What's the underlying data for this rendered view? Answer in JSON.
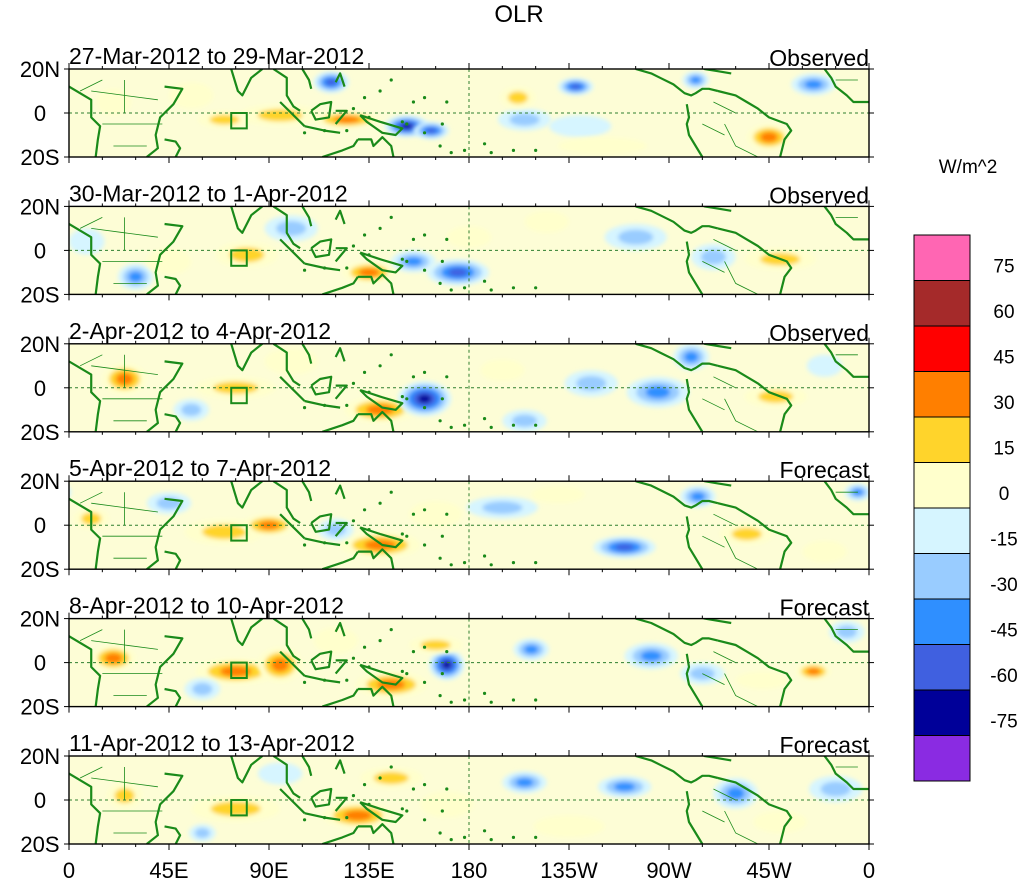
{
  "chart_data": {
    "type": "heatmap",
    "title": "OLR",
    "units": "W/m^2",
    "y_tick_labels": [
      "20N",
      "0",
      "20S"
    ],
    "x_tick_labels": [
      "0",
      "45E",
      "90E",
      "135E",
      "180",
      "135W",
      "90W",
      "45W",
      "0"
    ],
    "x_range_deg_east": [
      0,
      360
    ],
    "y_range_deg_north": [
      -20,
      20
    ],
    "colorbar": {
      "levels": [
        "75",
        "60",
        "45",
        "30",
        "15",
        "0",
        "-15",
        "-30",
        "-45",
        "-60",
        "-75"
      ],
      "colors": [
        "#ff66b3",
        "#a52a2a",
        "#ff0000",
        "#ff7f00",
        "#ffd42b",
        "#ffffcc",
        "#d6f5ff",
        "#99ccff",
        "#2f8fff",
        "#4060e0",
        "#000099",
        "#8a2be2"
      ]
    },
    "panels": [
      {
        "label": "27-Mar-2012 to 29-Mar-2012",
        "status": "Observed",
        "blobs": [
          [
            95,
            -1,
            18,
            5,
            30
          ],
          [
            70,
            -3,
            12,
            4,
            32
          ],
          [
            125,
            -3,
            15,
            4,
            40
          ],
          [
            152,
            -6,
            10,
            5,
            -70
          ],
          [
            163,
            -8,
            8,
            4,
            -55
          ],
          [
            205,
            -3,
            12,
            5,
            -25
          ],
          [
            230,
            -6,
            14,
            5,
            -22
          ],
          [
            315,
            -11,
            10,
            6,
            50
          ],
          [
            202,
            7,
            8,
            5,
            30
          ],
          [
            228,
            12,
            8,
            4,
            -55
          ],
          [
            282,
            15,
            6,
            4,
            -45
          ],
          [
            335,
            13,
            10,
            5,
            -40
          ],
          [
            118,
            14,
            8,
            5,
            -60
          ],
          [
            55,
            8,
            10,
            6,
            18
          ],
          [
            20,
            5,
            8,
            6,
            22
          ],
          [
            240,
            -15,
            20,
            4,
            10
          ]
        ]
      },
      {
        "label": "30-Mar-2012 to 1-Apr-2012",
        "status": "Observed",
        "blobs": [
          [
            80,
            -2,
            14,
            6,
            35
          ],
          [
            30,
            -12,
            8,
            6,
            -40
          ],
          [
            135,
            -10,
            12,
            5,
            38
          ],
          [
            175,
            -10,
            14,
            6,
            -60
          ],
          [
            155,
            -5,
            10,
            5,
            -45
          ],
          [
            215,
            13,
            10,
            5,
            22
          ],
          [
            255,
            6,
            14,
            6,
            -30
          ],
          [
            290,
            -3,
            10,
            6,
            -25
          ],
          [
            320,
            -4,
            16,
            5,
            28
          ],
          [
            100,
            10,
            12,
            6,
            -25
          ],
          [
            180,
            6,
            10,
            5,
            15
          ],
          [
            45,
            -5,
            10,
            6,
            18
          ],
          [
            8,
            4,
            8,
            6,
            -18
          ]
        ]
      },
      {
        "label": "2-Apr-2012 to 4-Apr-2012",
        "status": "Observed",
        "blobs": [
          [
            25,
            4,
            10,
            7,
            45
          ],
          [
            75,
            0,
            18,
            5,
            30
          ],
          [
            140,
            -10,
            16,
            6,
            45
          ],
          [
            160,
            -5,
            12,
            8,
            -70
          ],
          [
            205,
            -15,
            10,
            5,
            -30
          ],
          [
            235,
            2,
            12,
            6,
            -30
          ],
          [
            265,
            -2,
            14,
            7,
            -45
          ],
          [
            280,
            14,
            8,
            6,
            -40
          ],
          [
            318,
            -4,
            14,
            5,
            30
          ],
          [
            55,
            -10,
            8,
            5,
            -25
          ],
          [
            100,
            12,
            12,
            6,
            22
          ],
          [
            195,
            8,
            10,
            5,
            22
          ],
          [
            340,
            10,
            8,
            5,
            -20
          ]
        ]
      },
      {
        "label": "5-Apr-2012 to 7-Apr-2012",
        "status": "Forecast",
        "blobs": [
          [
            70,
            -3,
            18,
            6,
            32
          ],
          [
            90,
            0,
            12,
            5,
            40
          ],
          [
            140,
            -9,
            18,
            6,
            42
          ],
          [
            120,
            -2,
            8,
            5,
            -30
          ],
          [
            195,
            8,
            16,
            5,
            -30
          ],
          [
            250,
            -10,
            14,
            5,
            -55
          ],
          [
            283,
            13,
            8,
            5,
            -45
          ],
          [
            305,
            -4,
            12,
            5,
            30
          ],
          [
            10,
            3,
            8,
            5,
            28
          ],
          [
            45,
            10,
            10,
            5,
            -25
          ],
          [
            165,
            5,
            12,
            6,
            18
          ],
          [
            220,
            14,
            12,
            4,
            22
          ],
          [
            340,
            -12,
            10,
            5,
            15
          ],
          [
            355,
            15,
            6,
            4,
            -40
          ]
        ]
      },
      {
        "label": "8-Apr-2012 to 10-Apr-2012",
        "status": "Forecast",
        "blobs": [
          [
            20,
            2,
            10,
            6,
            45
          ],
          [
            75,
            -4,
            18,
            6,
            38
          ],
          [
            95,
            -1,
            10,
            8,
            42
          ],
          [
            145,
            -10,
            16,
            6,
            48
          ],
          [
            170,
            -1,
            8,
            7,
            -70
          ],
          [
            208,
            6,
            8,
            5,
            -45
          ],
          [
            262,
            3,
            12,
            6,
            -40
          ],
          [
            285,
            -5,
            10,
            5,
            -30
          ],
          [
            312,
            -8,
            12,
            4,
            22
          ],
          [
            335,
            -4,
            8,
            4,
            38
          ],
          [
            165,
            8,
            12,
            4,
            28
          ],
          [
            60,
            -12,
            8,
            5,
            -35
          ],
          [
            350,
            14,
            8,
            5,
            -30
          ],
          [
            120,
            10,
            10,
            6,
            18
          ]
        ]
      },
      {
        "label": "11-Apr-2012 to 13-Apr-2012",
        "status": "Forecast",
        "blobs": [
          [
            75,
            -4,
            20,
            6,
            32
          ],
          [
            130,
            -7,
            16,
            6,
            40
          ],
          [
            145,
            10,
            14,
            5,
            30
          ],
          [
            205,
            8,
            10,
            5,
            -45
          ],
          [
            250,
            6,
            12,
            5,
            -40
          ],
          [
            300,
            3,
            10,
            7,
            -50
          ],
          [
            345,
            5,
            12,
            6,
            -30
          ],
          [
            25,
            2,
            8,
            6,
            28
          ],
          [
            60,
            -15,
            6,
            4,
            -35
          ],
          [
            170,
            -2,
            12,
            6,
            18
          ],
          [
            225,
            -12,
            16,
            5,
            15
          ],
          [
            320,
            -10,
            12,
            5,
            22
          ],
          [
            95,
            12,
            10,
            5,
            -20
          ]
        ]
      }
    ]
  }
}
